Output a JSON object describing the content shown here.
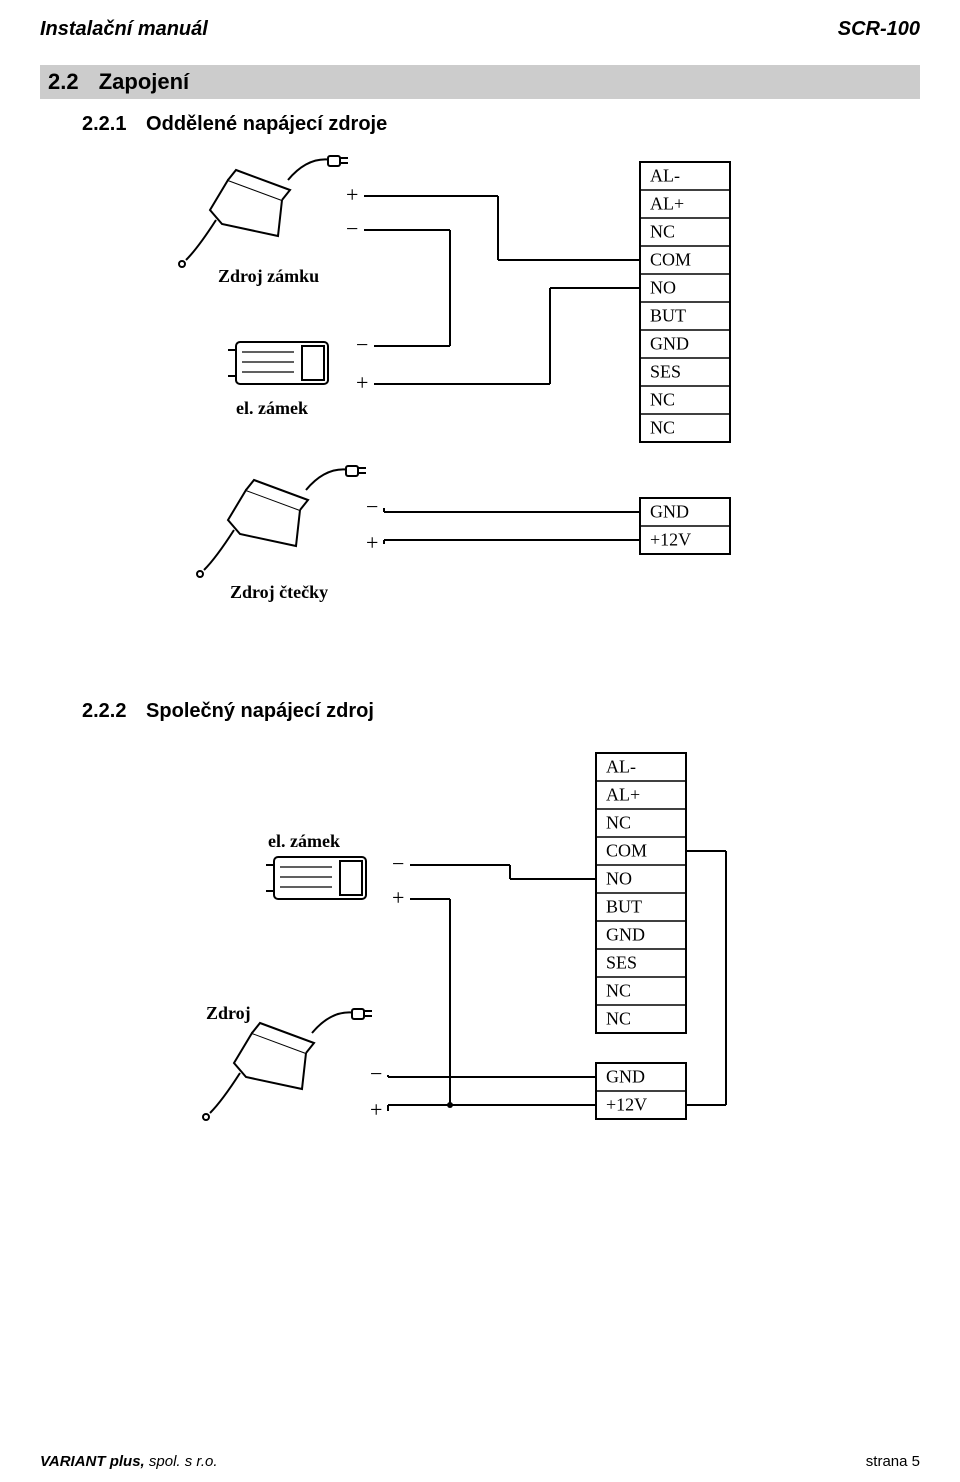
{
  "header": {
    "left": "Instalační manuál",
    "right": "SCR-100"
  },
  "section": {
    "number": "2.2",
    "title": "Zapojení"
  },
  "sub1": {
    "number": "2.2.1",
    "title": "Oddělené napájecí zdroje"
  },
  "sub2": {
    "number": "2.2.2",
    "title": "Společný napájecí zdroj"
  },
  "diagram1": {
    "terminals_top": [
      "AL-",
      "AL+",
      "NC",
      "COM",
      "NO",
      "BUT",
      "GND",
      "SES",
      "NC",
      "NC"
    ],
    "terminals_bottom": [
      "GND",
      "+12V"
    ],
    "labels": {
      "zdroj_zamku": "Zdroj zámku",
      "el_zamek": "el. zámek",
      "zdroj_ctecky": "Zdroj čtečky"
    },
    "polarity": {
      "plus": "+",
      "minus": "−"
    },
    "style": {
      "stroke": "#000000",
      "stroke_width": 2,
      "bg": "#ffffff",
      "font_size_terminal": 18,
      "font_size_label": 18,
      "font_size_polarity": 22,
      "terminal_box_w": 90,
      "terminal_row_h": 28
    }
  },
  "diagram2": {
    "terminals_top": [
      "AL-",
      "AL+",
      "NC",
      "COM",
      "NO",
      "BUT",
      "GND",
      "SES",
      "NC",
      "NC"
    ],
    "terminals_bottom": [
      "GND",
      "+12V"
    ],
    "labels": {
      "el_zamek": "el. zámek",
      "zdroj": "Zdroj"
    },
    "polarity": {
      "plus": "+",
      "minus": "−"
    },
    "style": {
      "stroke": "#000000",
      "stroke_width": 2,
      "bg": "#ffffff",
      "font_size_terminal": 18,
      "font_size_label": 18,
      "font_size_polarity": 22,
      "terminal_box_w": 90,
      "terminal_row_h": 28
    }
  },
  "footer": {
    "company_bold": "VARIANT plus,",
    "company_rest": " spol. s r.o.",
    "page": "strana 5"
  }
}
